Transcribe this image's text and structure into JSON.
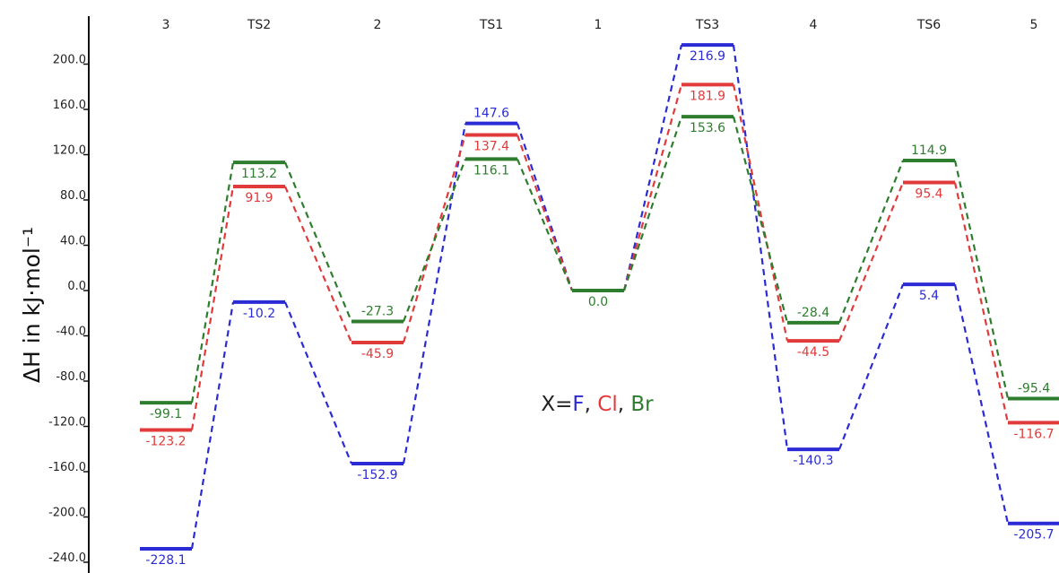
{
  "chart_data": {
    "type": "line",
    "title": "",
    "ylabel": "ΔH in kJ·mol⁻¹",
    "xlabel": "",
    "ylim": [
      -250,
      235
    ],
    "yticks": [
      200,
      160,
      120,
      80,
      40,
      0,
      -40,
      -80,
      -120,
      -160,
      -200,
      -240
    ],
    "categories": [
      "3",
      "TS2",
      "2",
      "TS1",
      "1",
      "TS3",
      "4",
      "TS6",
      "5"
    ],
    "legend": {
      "prefix": "X=",
      "parts": [
        {
          "text": "F",
          "color": "#2b2bd6"
        },
        {
          "text": ", ",
          "color": "#222222"
        },
        {
          "text": "Cl",
          "color": "#e03a3a"
        },
        {
          "text": ", ",
          "color": "#222222"
        },
        {
          "text": "Br",
          "color": "#2e7d2e"
        }
      ],
      "placement": "center"
    },
    "series": [
      {
        "name": "F",
        "color": "#2b2bd6",
        "values": [
          -228.1,
          -10.2,
          -152.9,
          147.6,
          0.0,
          216.9,
          -140.3,
          5.4,
          -205.7
        ],
        "labels": [
          "-228.1",
          "-10.2",
          "-152.9",
          "147.6",
          "",
          "216.9",
          "-140.3",
          "5.4",
          "-205.7"
        ],
        "label_pos": [
          "below",
          "below",
          "below",
          "above",
          "below",
          "below",
          "below",
          "below",
          "below"
        ]
      },
      {
        "name": "Cl",
        "color": "#e03a3a",
        "values": [
          -123.2,
          91.9,
          -45.9,
          137.4,
          0.0,
          181.9,
          -44.5,
          95.4,
          -116.7
        ],
        "labels": [
          "-123.2",
          "91.9",
          "-45.9",
          "137.4",
          "",
          "181.9",
          "-44.5",
          "95.4",
          "-116.7"
        ],
        "label_pos": [
          "below",
          "below",
          "below",
          "below",
          "below",
          "below",
          "below",
          "below",
          "below"
        ]
      },
      {
        "name": "Br",
        "color": "#2e7d2e",
        "values": [
          -99.1,
          113.2,
          -27.3,
          116.1,
          0.0,
          153.6,
          -28.4,
          114.9,
          -95.4
        ],
        "labels": [
          "-99.1",
          "113.2",
          "-27.3",
          "116.1",
          "0.0",
          "153.6",
          "-28.4",
          "114.9",
          "-95.4"
        ],
        "label_pos": [
          "below",
          "below",
          "above",
          "below",
          "below",
          "below",
          "above",
          "above",
          "above"
        ]
      }
    ]
  }
}
